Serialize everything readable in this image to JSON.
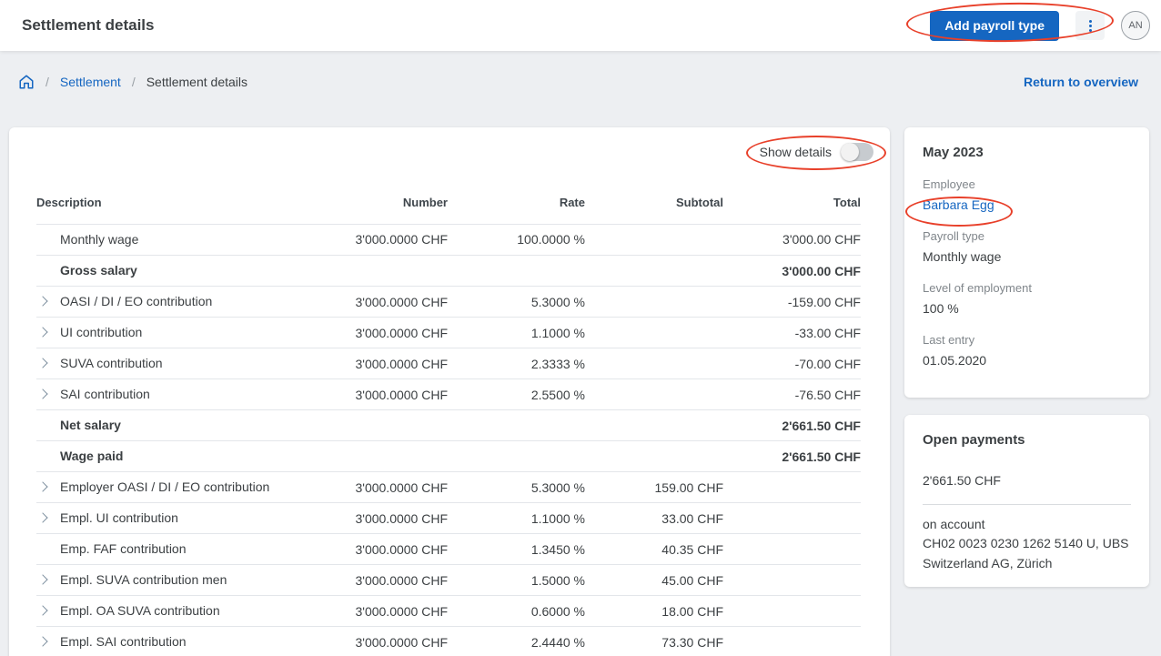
{
  "header": {
    "title": "Settlement details",
    "add_button_label": "Add payroll type",
    "kebab_icon": "kebab-menu-icon",
    "avatar_initials": "AN"
  },
  "breadcrumb": {
    "home_icon": "home-icon",
    "separator": "/",
    "items": [
      "Settlement",
      "Settlement details"
    ],
    "return_link": "Return to overview"
  },
  "table": {
    "show_details_label": "Show details",
    "show_details_toggle_state": "off",
    "columns": [
      "Description",
      "Number",
      "Rate",
      "Subtotal",
      "Total"
    ],
    "rows": [
      {
        "expandable": false,
        "bold": false,
        "description": "Monthly wage",
        "number": "3'000.0000 CHF",
        "rate": "100.0000 %",
        "subtotal": "",
        "total": "3'000.00 CHF"
      },
      {
        "expandable": false,
        "bold": true,
        "description": "Gross salary",
        "number": "",
        "rate": "",
        "subtotal": "",
        "total": "3'000.00 CHF"
      },
      {
        "expandable": true,
        "bold": false,
        "description": "OASI / DI / EO contribution",
        "number": "3'000.0000 CHF",
        "rate": "5.3000 %",
        "subtotal": "",
        "total": "-159.00 CHF"
      },
      {
        "expandable": true,
        "bold": false,
        "description": "UI contribution",
        "number": "3'000.0000 CHF",
        "rate": "1.1000 %",
        "subtotal": "",
        "total": "-33.00 CHF"
      },
      {
        "expandable": true,
        "bold": false,
        "description": "SUVA contribution",
        "number": "3'000.0000 CHF",
        "rate": "2.3333 %",
        "subtotal": "",
        "total": "-70.00 CHF"
      },
      {
        "expandable": true,
        "bold": false,
        "description": "SAI contribution",
        "number": "3'000.0000 CHF",
        "rate": "2.5500 %",
        "subtotal": "",
        "total": "-76.50 CHF"
      },
      {
        "expandable": false,
        "bold": true,
        "description": "Net salary",
        "number": "",
        "rate": "",
        "subtotal": "",
        "total": "2'661.50 CHF"
      },
      {
        "expandable": false,
        "bold": true,
        "description": "Wage paid",
        "number": "",
        "rate": "",
        "subtotal": "",
        "total": "2'661.50 CHF"
      },
      {
        "expandable": true,
        "bold": false,
        "description": "Employer OASI / DI / EO contribution",
        "number": "3'000.0000 CHF",
        "rate": "5.3000 %",
        "subtotal": "159.00 CHF",
        "total": ""
      },
      {
        "expandable": true,
        "bold": false,
        "description": "Empl. UI contribution",
        "number": "3'000.0000 CHF",
        "rate": "1.1000 %",
        "subtotal": "33.00 CHF",
        "total": ""
      },
      {
        "expandable": false,
        "bold": false,
        "description": "Emp. FAF contribution",
        "number": "3'000.0000 CHF",
        "rate": "1.3450 %",
        "subtotal": "40.35 CHF",
        "total": ""
      },
      {
        "expandable": true,
        "bold": false,
        "description": "Empl. SUVA contribution men",
        "number": "3'000.0000 CHF",
        "rate": "1.5000 %",
        "subtotal": "45.00 CHF",
        "total": ""
      },
      {
        "expandable": true,
        "bold": false,
        "description": "Empl. OA SUVA contribution",
        "number": "3'000.0000 CHF",
        "rate": "0.6000 %",
        "subtotal": "18.00 CHF",
        "total": ""
      },
      {
        "expandable": true,
        "bold": false,
        "description": "Empl. SAI contribution",
        "number": "3'000.0000 CHF",
        "rate": "2.4440 %",
        "subtotal": "73.30 CHF",
        "total": ""
      }
    ]
  },
  "period_card": {
    "title": "May 2023",
    "fields": [
      {
        "label": "Employee",
        "value": "Barbara Egg",
        "link": true
      },
      {
        "label": "Payroll type",
        "value": "Monthly wage",
        "link": false
      },
      {
        "label": "Level of employment",
        "value": "100 %",
        "link": false
      },
      {
        "label": "Last entry",
        "value": "01.05.2020",
        "link": false
      }
    ]
  },
  "open_payments": {
    "title": "Open payments",
    "amount": "2'661.50 CHF",
    "account_label": "on account",
    "account_value": "CH02 0023 0230 1262 5140 U, UBS Switzerland AG, Zürich"
  },
  "annotations": [
    "red-ellipse-around-add-payroll-button",
    "red-ellipse-around-show-details-toggle",
    "red-ellipse-around-employee-name"
  ],
  "colors": {
    "accent_blue": "#1566c1",
    "annotation_red": "#e8402a",
    "page_background": "#edeff2",
    "card_background": "#ffffff",
    "text_dark": "#3c4043",
    "text_gray_label": "#80868b",
    "row_divider": "#e3e6ea",
    "chevron_gray": "#7d8f9f"
  }
}
